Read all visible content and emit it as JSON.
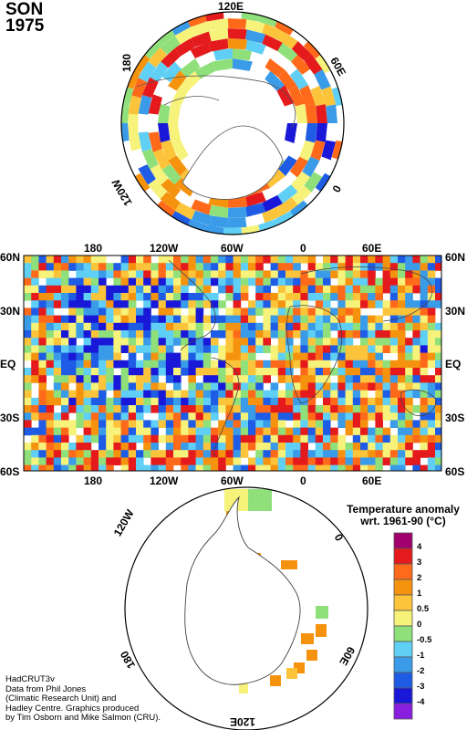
{
  "title": {
    "season": "SON",
    "year": "1975"
  },
  "north_polar": {
    "labels": {
      "top": "120E",
      "left": "180",
      "right": "60E",
      "bottom_left": "120W",
      "bottom_right": "0"
    }
  },
  "main_map": {
    "lon_labels": [
      "180",
      "120W",
      "60W",
      "0",
      "60E"
    ],
    "lat_labels": [
      "60N",
      "30N",
      "EQ",
      "30S",
      "60S"
    ]
  },
  "south_polar": {
    "labels": {
      "left": "120W",
      "right": "0",
      "bottom_left": "180",
      "bottom_right": "60E",
      "bottom": "120E"
    }
  },
  "legend": {
    "title_line1": "Temperature anomaly",
    "title_line2": "wrt. 1961-90  (°C)",
    "bins": [
      {
        "label": "4",
        "color": "#a0006e"
      },
      {
        "label": "3",
        "color": "#e41a1c"
      },
      {
        "label": "2",
        "color": "#ff6a1a"
      },
      {
        "label": "1",
        "color": "#f5930f"
      },
      {
        "label": "0.5",
        "color": "#fcc43a"
      },
      {
        "label": "0",
        "color": "#f6f27a"
      },
      {
        "label": "-0.5",
        "color": "#8fe07a"
      },
      {
        "label": "-1",
        "color": "#5fcff5"
      },
      {
        "label": "-2",
        "color": "#3a9be8"
      },
      {
        "label": "-3",
        "color": "#1f5ce6"
      },
      {
        "label": "-4",
        "color": "#1a18d8"
      },
      {
        "label": "",
        "color": "#8a1ee0"
      }
    ]
  },
  "credit": [
    "HadCRUT3v",
    "Data from Phil Jones",
    "(Climatic Research Unit) and",
    "Hadley Centre.  Graphics produced",
    "by Tim Osborn and Mike Salmon (CRU)."
  ]
}
